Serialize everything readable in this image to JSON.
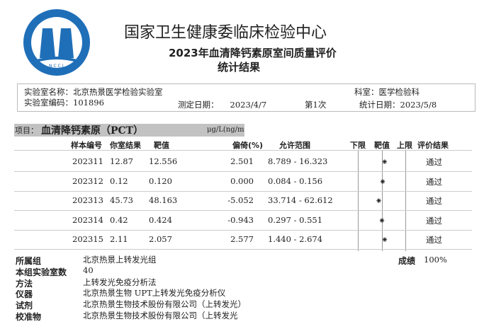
{
  "header": {
    "org_title": "国家卫生健康委临床检验中心",
    "report_title": "2023年血清降钙素原室间质量评价",
    "report_subtitle": "统计结果",
    "logo": {
      "text_cn": "国家卫生健康委临床检验中心",
      "text_en": "National Center for Clinical Laboratories",
      "abbr": "NCCL",
      "color": "#1f6fb8"
    }
  },
  "lab_info": {
    "name_label": "实验室名称：",
    "name": "北京热景医学检验实验室",
    "dept_label": "科室：",
    "dept": "医学检验科",
    "code_label": "实验室编码：",
    "code": "101896",
    "test_date_label": "测定日期：",
    "test_date": "2023/4/7",
    "round": "第1次",
    "stat_date_label": "统计日期：",
    "stat_date": "2023/5/8"
  },
  "project": {
    "label": "项目：",
    "name": "血清降钙素原（PCT）",
    "unit": "μg/L(ng/m"
  },
  "table": {
    "headers": [
      "样本编号",
      "你室结果",
      "靶值",
      "偏倚(%)",
      "允许范围",
      "下限",
      "靶值",
      "上限",
      "评价结果"
    ],
    "rows": [
      {
        "sample": "202311",
        "result": "12.87",
        "target": "12.556",
        "bias": "2.501",
        "range": "8.789 - 16.323",
        "result_value": 12.87,
        "target_value": 12.556,
        "low": 8.789,
        "high": 16.323,
        "eval": "通过"
      },
      {
        "sample": "202312",
        "result": "0.12",
        "target": "0.120",
        "bias": "0.000",
        "range": "0.084 - 0.156",
        "result_value": 0.12,
        "target_value": 0.12,
        "low": 0.084,
        "high": 0.156,
        "eval": "通过"
      },
      {
        "sample": "202313",
        "result": "45.73",
        "target": "48.163",
        "bias": "-5.052",
        "range": "33.714 - 62.612",
        "result_value": 45.73,
        "target_value": 48.163,
        "low": 33.714,
        "high": 62.612,
        "eval": "通过"
      },
      {
        "sample": "202314",
        "result": "0.42",
        "target": "0.424",
        "bias": "-0.943",
        "range": "0.297 - 0.551",
        "result_value": 0.42,
        "target_value": 0.424,
        "low": 0.297,
        "high": 0.551,
        "eval": "通过"
      },
      {
        "sample": "202315",
        "result": "2.11",
        "target": "2.057",
        "bias": "2.577",
        "range": "1.440 - 2.674",
        "result_value": 2.11,
        "target_value": 2.057,
        "low": 1.44,
        "high": 2.674,
        "eval": "通过"
      }
    ],
    "marker_glyph": "⁕"
  },
  "summary": {
    "score_label": "成绩",
    "score": "100%",
    "items": [
      {
        "label": "所属组",
        "value": "北京热景上转发光组"
      },
      {
        "label": "本组实验室数",
        "value": "40"
      },
      {
        "label": "方法",
        "value": "上转发光免疫分析法"
      },
      {
        "label": "仪器",
        "value": "北京热景生物 UPT上转发光免疫分析仪"
      },
      {
        "label": "试剂",
        "value": "北京热景生物技术股份有限公司（上转发光）"
      },
      {
        "label": "校准物",
        "value": "北京热景生物技术股份有限公司（上转发光"
      }
    ]
  }
}
